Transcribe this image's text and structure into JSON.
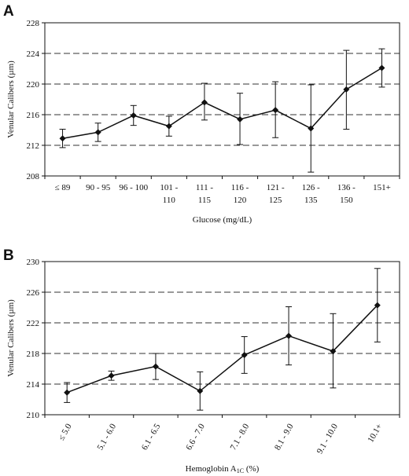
{
  "chart_data": [
    {
      "panel": "A",
      "type": "line",
      "xlabel": "Glucose (mg/dL)",
      "ylabel": "Venular Calibers (µm)",
      "ylim": [
        208,
        228
      ],
      "yticks": [
        208,
        212,
        216,
        220,
        224,
        228
      ],
      "grid": "dashed horizontal",
      "categories": [
        [
          "≤   89"
        ],
        [
          "90 - 95"
        ],
        [
          "96 - 100"
        ],
        [
          "101 -",
          "110"
        ],
        [
          "111 -",
          "115"
        ],
        [
          "116 -",
          "120"
        ],
        [
          "121 -",
          "125"
        ],
        [
          "126 -",
          "135"
        ],
        [
          "136 -",
          "150"
        ],
        [
          "151+"
        ]
      ],
      "values": [
        212.9,
        213.7,
        215.9,
        214.5,
        217.6,
        215.4,
        216.6,
        214.2,
        219.3,
        222.1
      ],
      "err_low": [
        211.7,
        212.5,
        214.6,
        213.2,
        215.3,
        212.1,
        213.0,
        208.5,
        214.1,
        219.6
      ],
      "err_high": [
        214.1,
        214.9,
        217.2,
        215.8,
        220.1,
        218.8,
        220.3,
        219.9,
        224.4,
        224.6
      ]
    },
    {
      "panel": "B",
      "type": "line",
      "xlabel": "Hemoglobin A",
      "xlabel_sub": "1C",
      "xlabel_suffix": " (%)",
      "ylabel": "Venular Calibers (µm)",
      "ylim": [
        210,
        230
      ],
      "yticks": [
        210,
        214,
        218,
        222,
        226,
        230
      ],
      "grid": "dashed horizontal",
      "categories": [
        "≤ 5.0",
        "5.1 - 6.0",
        "6.1 - 6.5",
        "6.6 - 7.0",
        "7.1 - 8.0",
        "8.1 - 9.0",
        "9.1 - 10.0",
        "10.1+"
      ],
      "values": [
        212.9,
        215.1,
        216.3,
        213.1,
        217.8,
        220.3,
        218.3,
        224.3
      ],
      "err_low": [
        211.6,
        214.5,
        214.6,
        210.6,
        215.4,
        216.5,
        213.5,
        219.5
      ],
      "err_high": [
        214.2,
        215.7,
        218.0,
        215.6,
        220.2,
        224.1,
        223.2,
        229.1
      ]
    }
  ]
}
